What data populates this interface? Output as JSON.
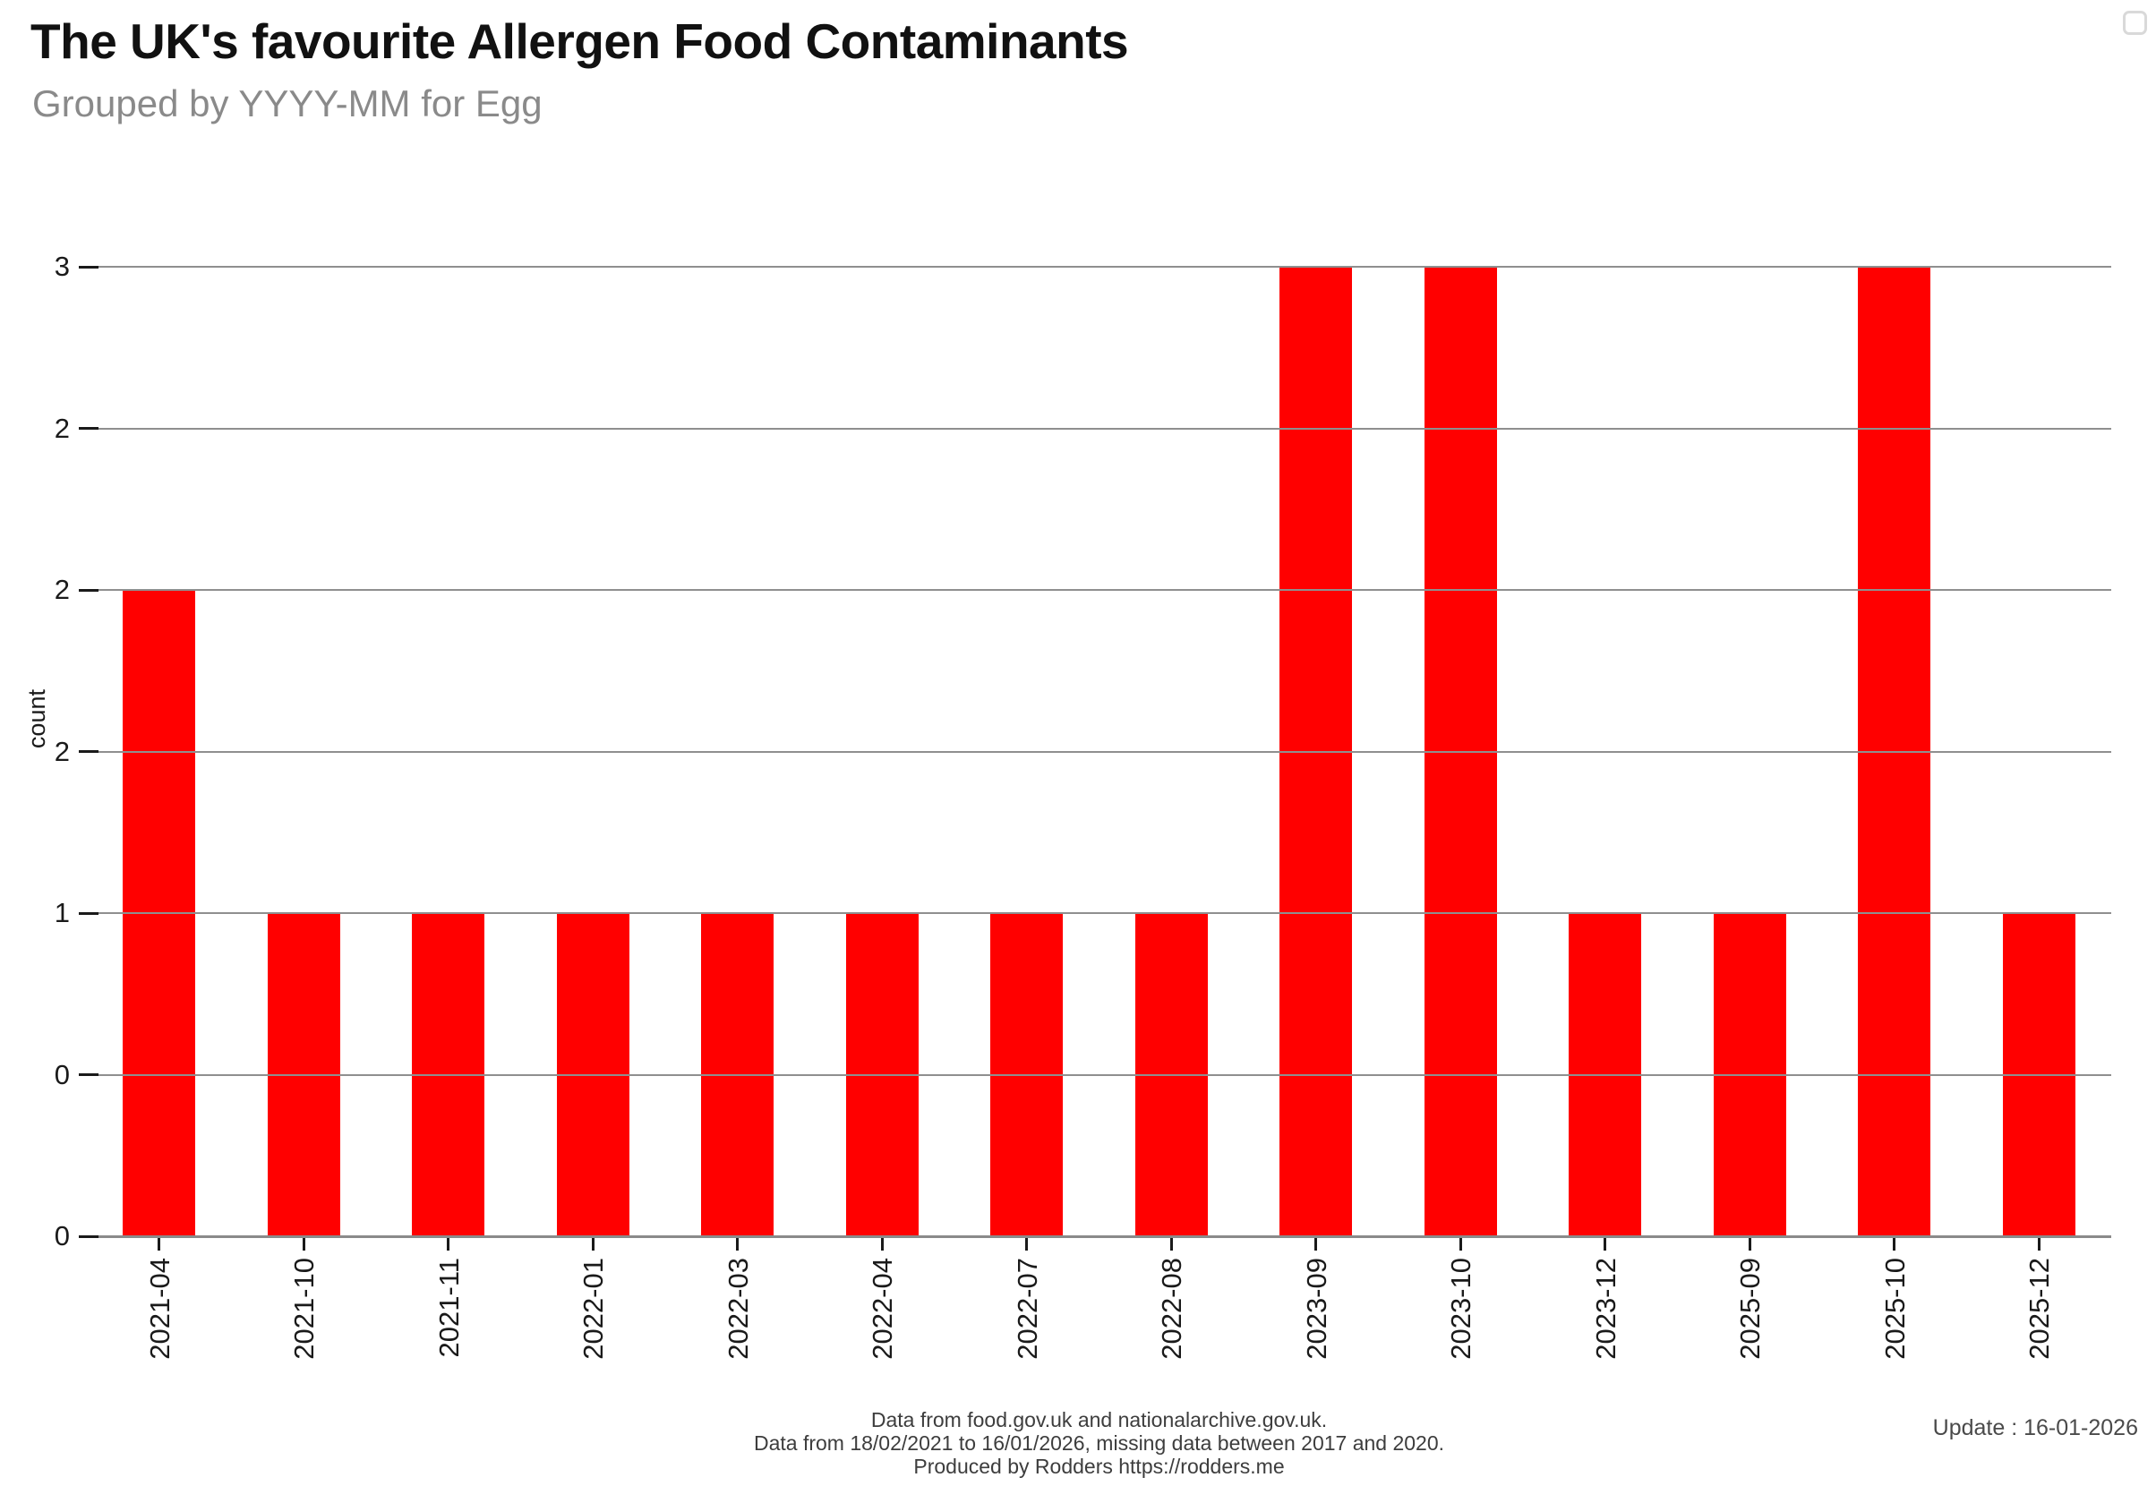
{
  "header": {
    "title": "The UK's favourite Allergen Food Contaminants",
    "subtitle": "Grouped by YYYY-MM for Egg"
  },
  "controls": {
    "fullscreen_button_icon": "empty-rounded-square-icon"
  },
  "chart_data": {
    "type": "bar",
    "title": "The UK's favourite Allergen Food Contaminants",
    "subtitle": "Grouped by YYYY-MM for Egg",
    "categories": [
      "2021-04",
      "2021-10",
      "2021-11",
      "2022-01",
      "2022-03",
      "2022-04",
      "2022-07",
      "2022-08",
      "2023-09",
      "2023-10",
      "2023-12",
      "2025-09",
      "2025-10",
      "2025-12"
    ],
    "values": [
      2,
      1,
      1,
      1,
      1,
      1,
      1,
      1,
      3,
      3,
      1,
      1,
      3,
      1
    ],
    "bar_color": "#ff0000",
    "xlabel": "",
    "ylabel": "count",
    "ylim": [
      0,
      3
    ],
    "yticks": [
      {
        "value": 0,
        "label": "0"
      },
      {
        "value": 0.5,
        "label": "0"
      },
      {
        "value": 1,
        "label": "1"
      },
      {
        "value": 1.5,
        "label": "2"
      },
      {
        "value": 2,
        "label": "2"
      },
      {
        "value": 2.5,
        "label": "2"
      },
      {
        "value": 3,
        "label": "3"
      }
    ],
    "grid": true,
    "gridlines_over_bars": true,
    "legend": "none",
    "x_tick_rotation": 90
  },
  "footer": {
    "lines": [
      "Data from food.gov.uk and nationalarchive.gov.uk.",
      "Data from 18/02/2021 to 16/01/2026, missing data between 2017 and 2020.",
      "Produced by Rodders https://rodders.me"
    ],
    "update": "Update : 16-01-2026"
  }
}
